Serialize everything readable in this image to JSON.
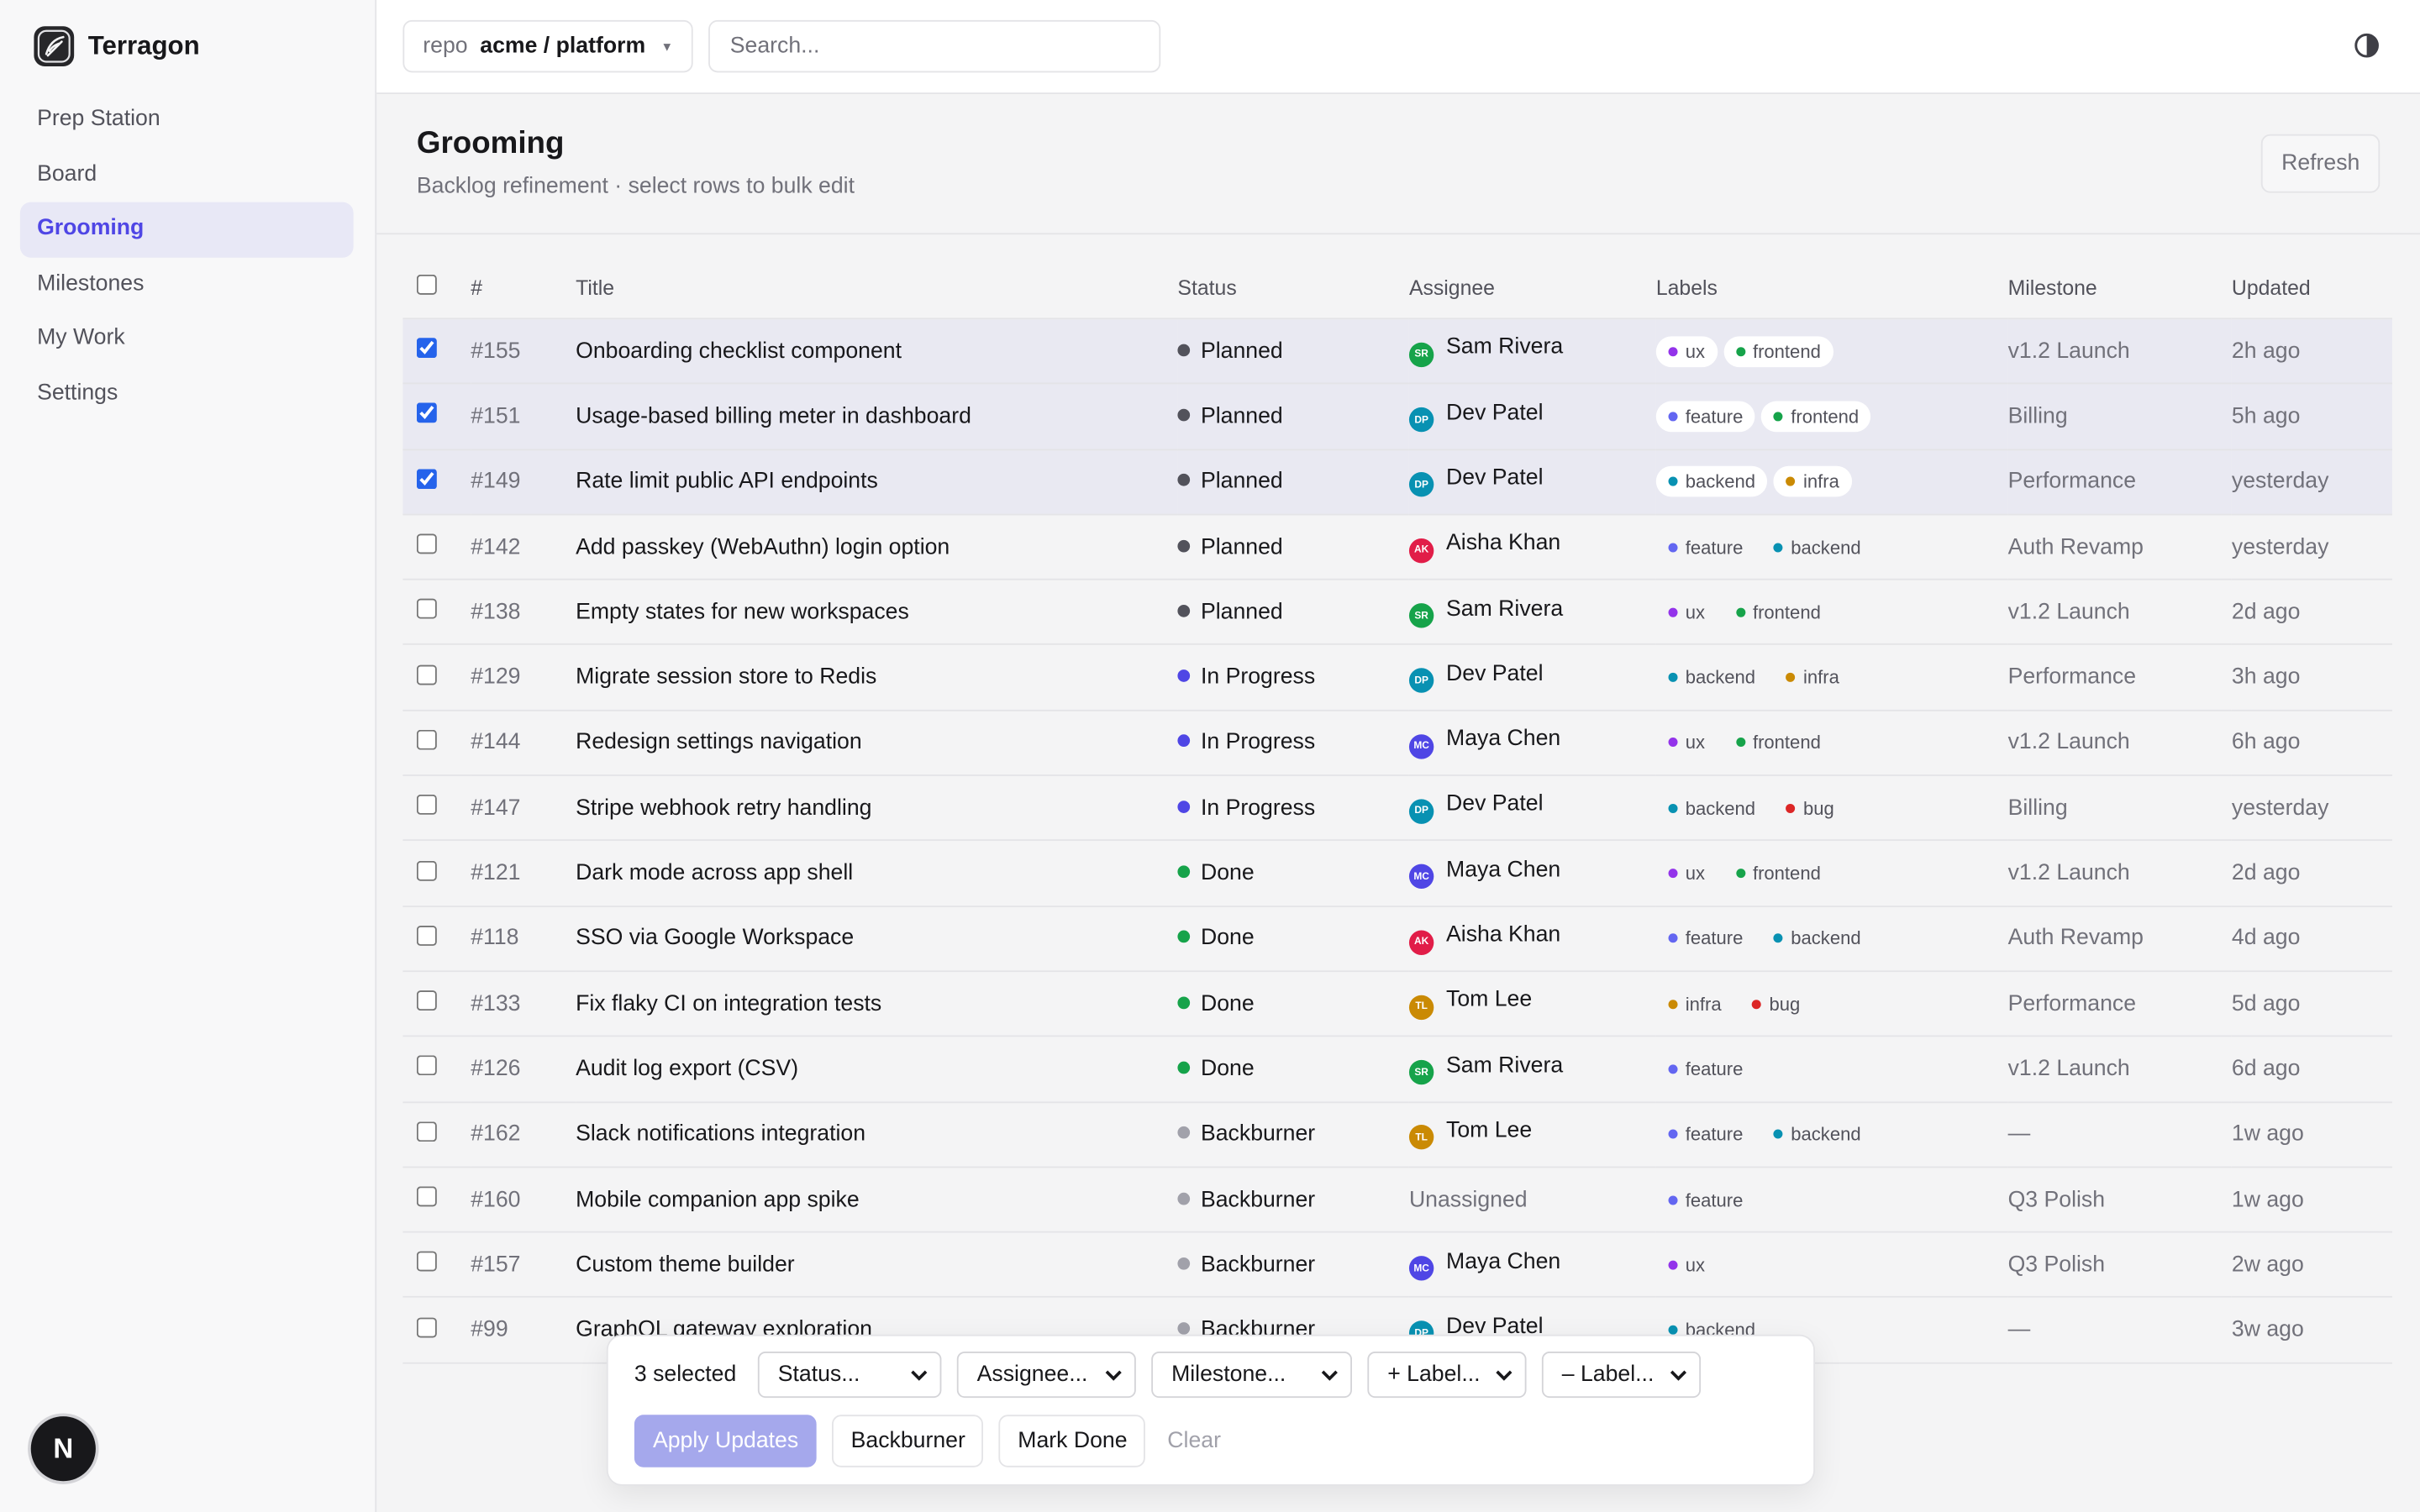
{
  "app": {
    "name": "Terragon"
  },
  "nav": {
    "items": [
      "Prep Station",
      "Board",
      "Grooming",
      "Milestones",
      "My Work",
      "Settings"
    ],
    "active": 2
  },
  "topbar": {
    "repo_label": "repo",
    "repo": "acme / platform",
    "search_placeholder": "Search..."
  },
  "page": {
    "title": "Grooming",
    "subtitle": "Backlog refinement · select rows to bulk edit",
    "refresh": "Refresh"
  },
  "table": {
    "columns": [
      "#",
      "Title",
      "Status",
      "Assignee",
      "Labels",
      "Milestone",
      "Updated"
    ],
    "rows": [
      {
        "id": "#155",
        "title": "Onboarding checklist component",
        "status": "Planned",
        "status_color": "#52525b",
        "assignee": "Sam Rivera",
        "initials": "SR",
        "avatar_color": "#16a34a",
        "labels": [
          {
            "name": "ux",
            "color": "#9333ea"
          },
          {
            "name": "frontend",
            "color": "#16a34a"
          }
        ],
        "milestone": "v1.2 Launch",
        "updated": "2h ago",
        "selected": true
      },
      {
        "id": "#151",
        "title": "Usage-based billing meter in dashboard",
        "status": "Planned",
        "status_color": "#52525b",
        "assignee": "Dev Patel",
        "initials": "DP",
        "avatar_color": "#0891b2",
        "labels": [
          {
            "name": "feature",
            "color": "#6366f1"
          },
          {
            "name": "frontend",
            "color": "#16a34a"
          }
        ],
        "milestone": "Billing",
        "updated": "5h ago",
        "selected": true
      },
      {
        "id": "#149",
        "title": "Rate limit public API endpoints",
        "status": "Planned",
        "status_color": "#52525b",
        "assignee": "Dev Patel",
        "initials": "DP",
        "avatar_color": "#0891b2",
        "labels": [
          {
            "name": "backend",
            "color": "#0891b2"
          },
          {
            "name": "infra",
            "color": "#ca8a04"
          }
        ],
        "milestone": "Performance",
        "updated": "yesterday",
        "selected": true
      },
      {
        "id": "#142",
        "title": "Add passkey (WebAuthn) login option",
        "status": "Planned",
        "status_color": "#52525b",
        "assignee": "Aisha Khan",
        "initials": "AK",
        "avatar_color": "#e11d48",
        "labels": [
          {
            "name": "feature",
            "color": "#6366f1"
          },
          {
            "name": "backend",
            "color": "#0891b2"
          }
        ],
        "milestone": "Auth Revamp",
        "updated": "yesterday",
        "selected": false
      },
      {
        "id": "#138",
        "title": "Empty states for new workspaces",
        "status": "Planned",
        "status_color": "#52525b",
        "assignee": "Sam Rivera",
        "initials": "SR",
        "avatar_color": "#16a34a",
        "labels": [
          {
            "name": "ux",
            "color": "#9333ea"
          },
          {
            "name": "frontend",
            "color": "#16a34a"
          }
        ],
        "milestone": "v1.2 Launch",
        "updated": "2d ago",
        "selected": false
      },
      {
        "id": "#129",
        "title": "Migrate session store to Redis",
        "status": "In Progress",
        "status_color": "#4f46e5",
        "assignee": "Dev Patel",
        "initials": "DP",
        "avatar_color": "#0891b2",
        "labels": [
          {
            "name": "backend",
            "color": "#0891b2"
          },
          {
            "name": "infra",
            "color": "#ca8a04"
          }
        ],
        "milestone": "Performance",
        "updated": "3h ago",
        "selected": false
      },
      {
        "id": "#144",
        "title": "Redesign settings navigation",
        "status": "In Progress",
        "status_color": "#4f46e5",
        "assignee": "Maya Chen",
        "initials": "MC",
        "avatar_color": "#4f46e5",
        "labels": [
          {
            "name": "ux",
            "color": "#9333ea"
          },
          {
            "name": "frontend",
            "color": "#16a34a"
          }
        ],
        "milestone": "v1.2 Launch",
        "updated": "6h ago",
        "selected": false
      },
      {
        "id": "#147",
        "title": "Stripe webhook retry handling",
        "status": "In Progress",
        "status_color": "#4f46e5",
        "assignee": "Dev Patel",
        "initials": "DP",
        "avatar_color": "#0891b2",
        "labels": [
          {
            "name": "backend",
            "color": "#0891b2"
          },
          {
            "name": "bug",
            "color": "#dc2626"
          }
        ],
        "milestone": "Billing",
        "updated": "yesterday",
        "selected": false
      },
      {
        "id": "#121",
        "title": "Dark mode across app shell",
        "status": "Done",
        "status_color": "#16a34a",
        "assignee": "Maya Chen",
        "initials": "MC",
        "avatar_color": "#4f46e5",
        "labels": [
          {
            "name": "ux",
            "color": "#9333ea"
          },
          {
            "name": "frontend",
            "color": "#16a34a"
          }
        ],
        "milestone": "v1.2 Launch",
        "updated": "2d ago",
        "selected": false
      },
      {
        "id": "#118",
        "title": "SSO via Google Workspace",
        "status": "Done",
        "status_color": "#16a34a",
        "assignee": "Aisha Khan",
        "initials": "AK",
        "avatar_color": "#e11d48",
        "labels": [
          {
            "name": "feature",
            "color": "#6366f1"
          },
          {
            "name": "backend",
            "color": "#0891b2"
          }
        ],
        "milestone": "Auth Revamp",
        "updated": "4d ago",
        "selected": false
      },
      {
        "id": "#133",
        "title": "Fix flaky CI on integration tests",
        "status": "Done",
        "status_color": "#16a34a",
        "assignee": "Tom Lee",
        "initials": "TL",
        "avatar_color": "#ca8a04",
        "labels": [
          {
            "name": "infra",
            "color": "#ca8a04"
          },
          {
            "name": "bug",
            "color": "#dc2626"
          }
        ],
        "milestone": "Performance",
        "updated": "5d ago",
        "selected": false
      },
      {
        "id": "#126",
        "title": "Audit log export (CSV)",
        "status": "Done",
        "status_color": "#16a34a",
        "assignee": "Sam Rivera",
        "initials": "SR",
        "avatar_color": "#16a34a",
        "labels": [
          {
            "name": "feature",
            "color": "#6366f1"
          }
        ],
        "milestone": "v1.2 Launch",
        "updated": "6d ago",
        "selected": false
      },
      {
        "id": "#162",
        "title": "Slack notifications integration",
        "status": "Backburner",
        "status_color": "#a1a1aa",
        "assignee": "Tom Lee",
        "initials": "TL",
        "avatar_color": "#ca8a04",
        "labels": [
          {
            "name": "feature",
            "color": "#6366f1"
          },
          {
            "name": "backend",
            "color": "#0891b2"
          }
        ],
        "milestone": "—",
        "updated": "1w ago",
        "selected": false
      },
      {
        "id": "#160",
        "title": "Mobile companion app spike",
        "status": "Backburner",
        "status_color": "#a1a1aa",
        "assignee": "Unassigned",
        "labels": [
          {
            "name": "feature",
            "color": "#6366f1"
          }
        ],
        "milestone": "Q3 Polish",
        "updated": "1w ago",
        "selected": false
      },
      {
        "id": "#157",
        "title": "Custom theme builder",
        "status": "Backburner",
        "status_color": "#a1a1aa",
        "assignee": "Maya Chen",
        "initials": "MC",
        "avatar_color": "#4f46e5",
        "labels": [
          {
            "name": "ux",
            "color": "#9333ea"
          }
        ],
        "milestone": "Q3 Polish",
        "updated": "2w ago",
        "selected": false
      },
      {
        "id": "#99",
        "title": "GraphQL gateway exploration",
        "status": "Backburner",
        "status_color": "#a1a1aa",
        "assignee": "Dev Patel",
        "initials": "DP",
        "avatar_color": "#0891b2",
        "labels": [
          {
            "name": "backend",
            "color": "#0891b2"
          }
        ],
        "milestone": "—",
        "updated": "3w ago",
        "selected": false
      }
    ]
  },
  "bulk_bar": {
    "count": "3 selected",
    "selects": [
      "Status...",
      "Assignee...",
      "Milestone...",
      "+ Label...",
      "– Label..."
    ],
    "apply": "Apply Updates",
    "backburner": "Backburner",
    "mark_done": "Mark Done",
    "clear": "Clear"
  },
  "badge": "N"
}
